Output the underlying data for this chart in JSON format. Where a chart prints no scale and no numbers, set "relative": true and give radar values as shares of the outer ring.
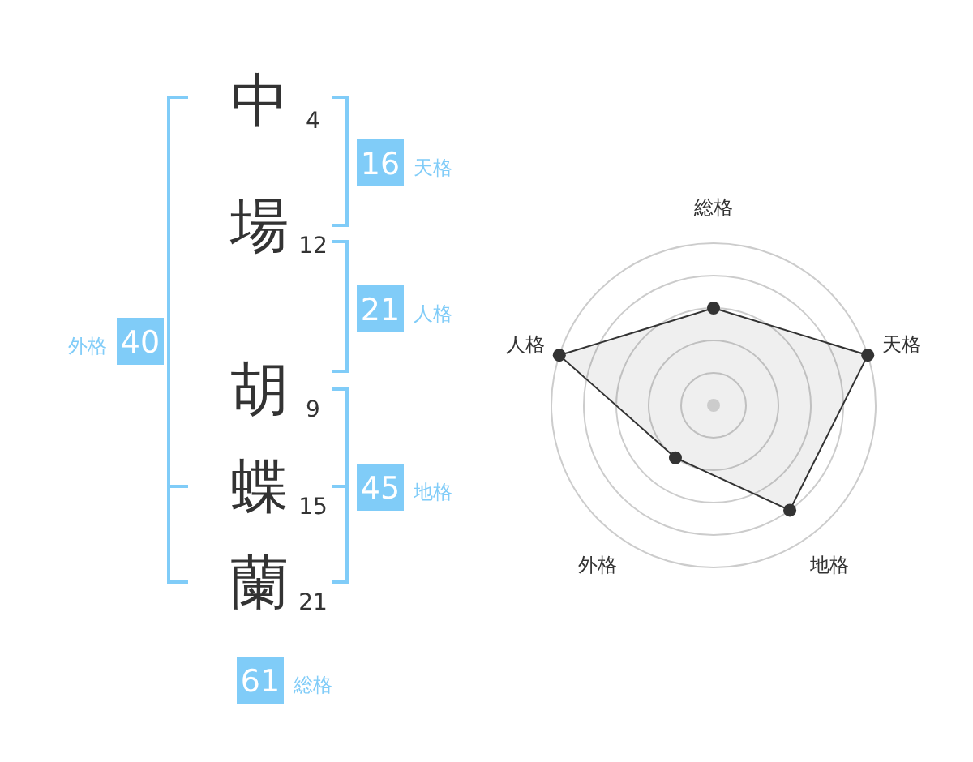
{
  "chart_data": [
    {
      "type": "other",
      "categories": [
        "中",
        "場",
        "胡",
        "蝶",
        "蘭"
      ],
      "values": [
        4,
        12,
        9,
        15,
        21
      ],
      "data_labels": true,
      "annotations": [
        "16",
        "天格",
        "21",
        "人格",
        "45",
        "地格",
        "40",
        "外格",
        "61",
        "総格"
      ],
      "color": "#80ccf8"
    },
    {
      "type": "radar",
      "categories": [
        "総格",
        "天格",
        "地格",
        "外格",
        "人格"
      ],
      "relative": true,
      "series": [
        {
          "color": "#333333",
          "values": [
            0.6,
            1.0,
            0.8,
            0.4,
            1.0
          ]
        }
      ],
      "grid": true,
      "marker": "circle"
    }
  ]
}
